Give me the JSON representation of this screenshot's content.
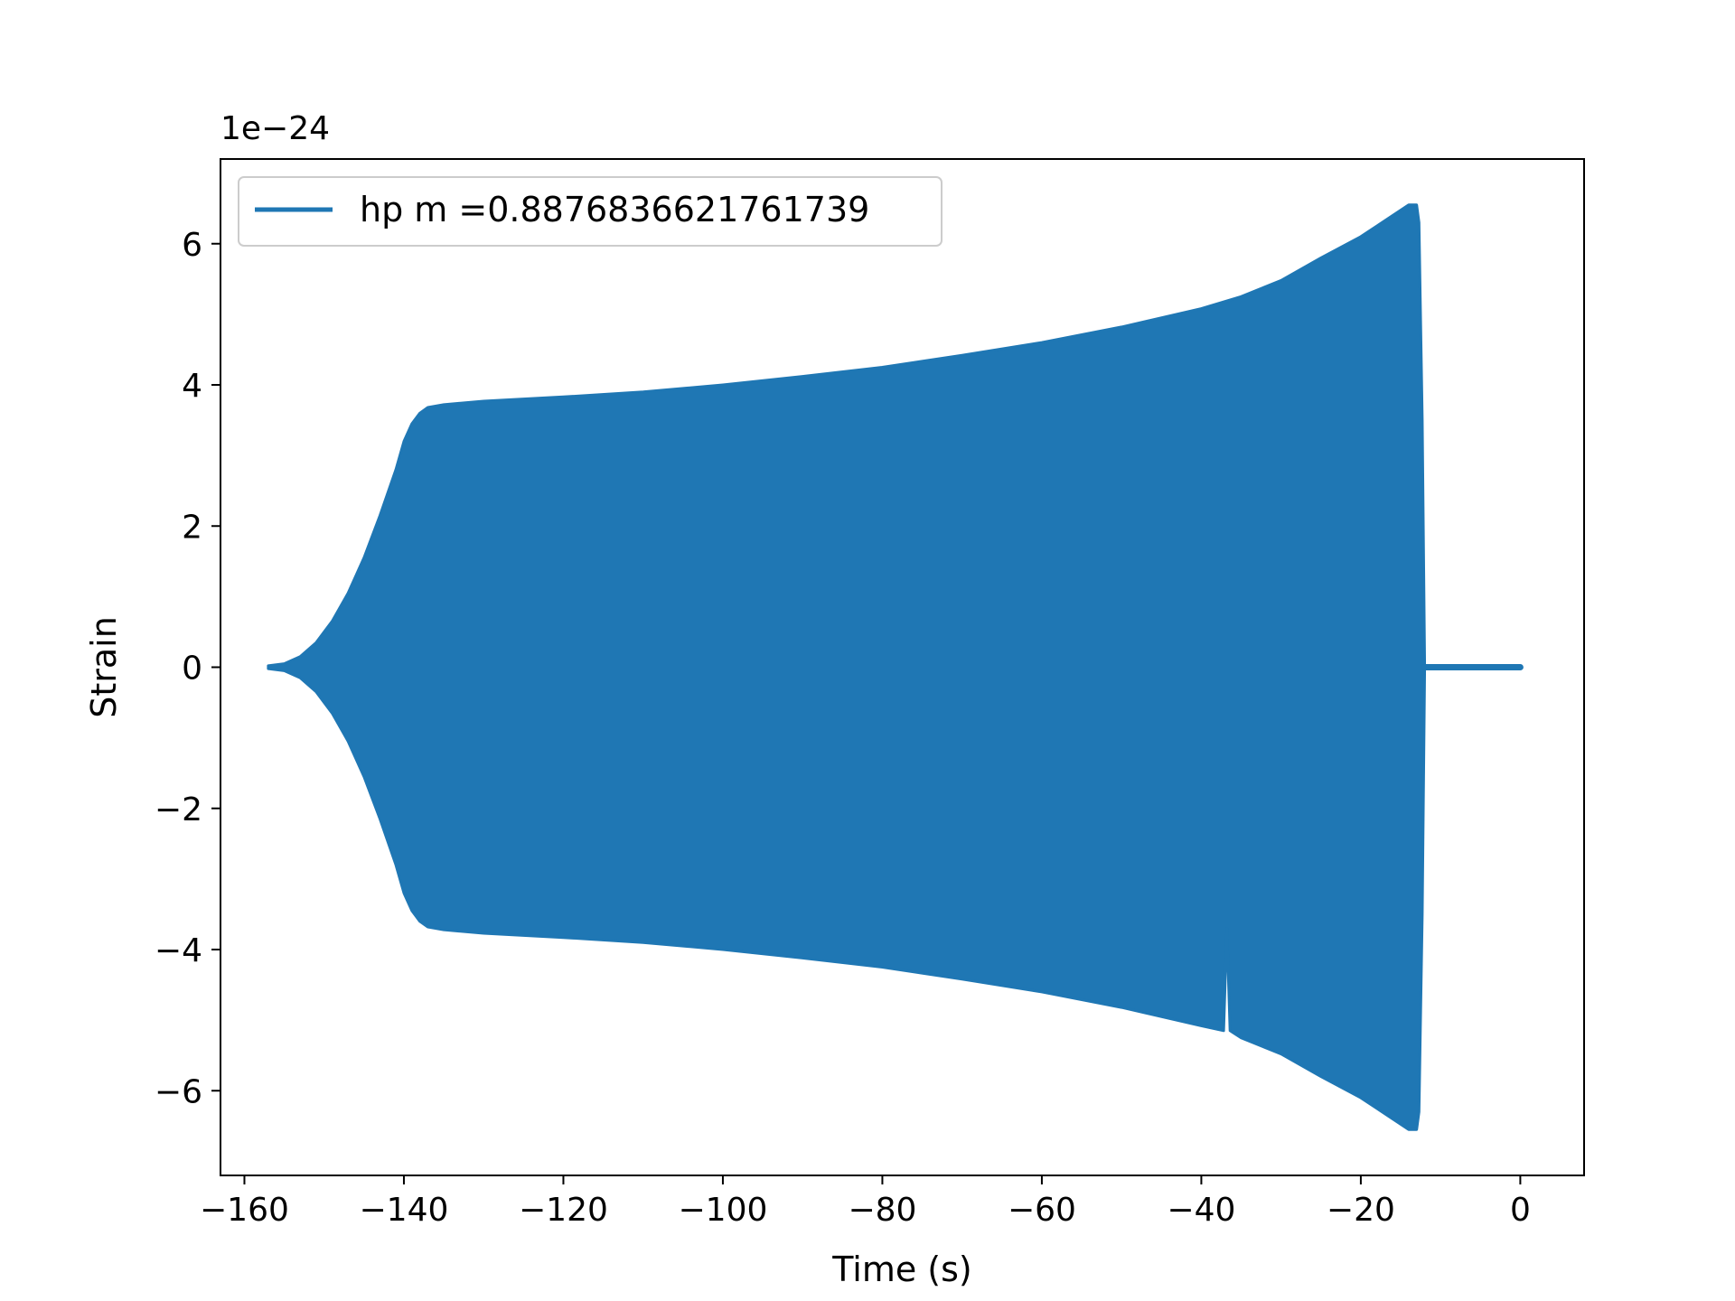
{
  "chart_data": {
    "type": "line",
    "title": "",
    "xlabel": "Time (s)",
    "ylabel": "Strain",
    "y_offset_label": "1e−24",
    "xlim": [
      -163,
      8
    ],
    "ylim": [
      -7.2,
      7.2
    ],
    "xticks": [
      -160,
      -140,
      -120,
      -100,
      -80,
      -60,
      -40,
      -20,
      0
    ],
    "xtick_labels": [
      "−160",
      "−140",
      "−120",
      "−100",
      "−80",
      "−60",
      "−40",
      "−20",
      "0"
    ],
    "yticks": [
      -6,
      -4,
      -2,
      0,
      2,
      4,
      6
    ],
    "ytick_labels": [
      "−6",
      "−4",
      "−2",
      "0",
      "2",
      "4",
      "6"
    ],
    "grid": false,
    "legend_position": "top-left",
    "series": [
      {
        "name": "hp m =0.8876836621761739",
        "color": "#1f77b4",
        "envelope_note_units": "strain x 1e-24",
        "upper_envelope": [
          [
            -157,
            0.02
          ],
          [
            -155,
            0.05
          ],
          [
            -153,
            0.15
          ],
          [
            -151,
            0.35
          ],
          [
            -149,
            0.65
          ],
          [
            -147,
            1.05
          ],
          [
            -145,
            1.55
          ],
          [
            -143,
            2.15
          ],
          [
            -141,
            2.8
          ],
          [
            -140,
            3.2
          ],
          [
            -139,
            3.45
          ],
          [
            -138,
            3.6
          ],
          [
            -137,
            3.68
          ],
          [
            -135,
            3.72
          ],
          [
            -130,
            3.77
          ],
          [
            -120,
            3.83
          ],
          [
            -110,
            3.9
          ],
          [
            -100,
            4.0
          ],
          [
            -90,
            4.12
          ],
          [
            -80,
            4.25
          ],
          [
            -70,
            4.42
          ],
          [
            -60,
            4.6
          ],
          [
            -50,
            4.82
          ],
          [
            -40,
            5.08
          ],
          [
            -35,
            5.25
          ],
          [
            -30,
            5.48
          ],
          [
            -25,
            5.8
          ],
          [
            -20,
            6.1
          ],
          [
            -16,
            6.4
          ],
          [
            -14,
            6.55
          ],
          [
            -13,
            6.55
          ],
          [
            -12.7,
            6.3
          ],
          [
            -12.3,
            3.5
          ],
          [
            -12.0,
            0.1
          ]
        ],
        "lower_envelope": [
          [
            -157,
            -0.02
          ],
          [
            -155,
            -0.05
          ],
          [
            -153,
            -0.15
          ],
          [
            -151,
            -0.35
          ],
          [
            -149,
            -0.65
          ],
          [
            -147,
            -1.05
          ],
          [
            -145,
            -1.55
          ],
          [
            -143,
            -2.15
          ],
          [
            -141,
            -2.8
          ],
          [
            -140,
            -3.2
          ],
          [
            -139,
            -3.45
          ],
          [
            -138,
            -3.6
          ],
          [
            -137,
            -3.68
          ],
          [
            -135,
            -3.72
          ],
          [
            -130,
            -3.77
          ],
          [
            -120,
            -3.83
          ],
          [
            -110,
            -3.9
          ],
          [
            -100,
            -4.0
          ],
          [
            -90,
            -4.12
          ],
          [
            -80,
            -4.25
          ],
          [
            -70,
            -4.42
          ],
          [
            -60,
            -4.6
          ],
          [
            -50,
            -4.82
          ],
          [
            -40,
            -5.08
          ],
          [
            -37.2,
            -5.15
          ],
          [
            -36.8,
            -3.7
          ],
          [
            -36.4,
            -5.15
          ],
          [
            -35,
            -5.25
          ],
          [
            -30,
            -5.48
          ],
          [
            -25,
            -5.8
          ],
          [
            -20,
            -6.1
          ],
          [
            -16,
            -6.4
          ],
          [
            -14,
            -6.55
          ],
          [
            -13,
            -6.55
          ],
          [
            -12.7,
            -6.3
          ],
          [
            -12.3,
            -3.5
          ],
          [
            -12.0,
            -0.1
          ]
        ],
        "ringdown": {
          "x": [
            -12.0,
            0.0
          ],
          "amplitude": 0.06
        }
      }
    ]
  }
}
